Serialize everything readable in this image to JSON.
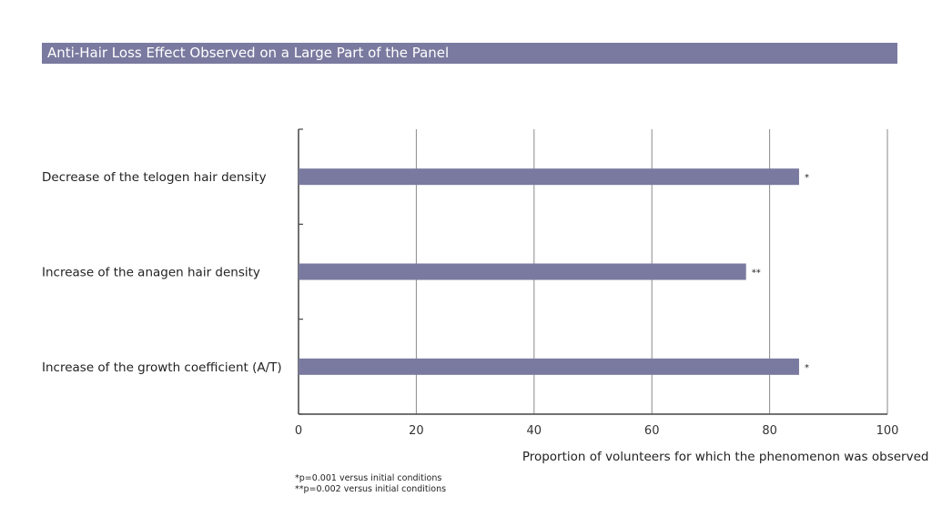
{
  "chart_data": {
    "type": "bar",
    "orientation": "horizontal",
    "title": "Anti-Hair Loss Effect Observed on a Large Part of the Panel",
    "categories": [
      "Decrease of the telogen hair density",
      "Increase of the anagen hair density",
      "Increase of the growth coefficient (A/T)"
    ],
    "values": [
      85,
      76,
      85
    ],
    "bar_annotations": [
      "*",
      "**",
      "*"
    ],
    "xlabel": "Proportion of volunteers for which the phenomenon was observed in %",
    "xlim": [
      0,
      100
    ],
    "xticks": [
      0,
      20,
      40,
      60,
      80,
      100
    ],
    "grid": "vertical",
    "bar_color": "#7a7aa0",
    "footnotes": [
      "*p=0.001 versus initial conditions",
      "**p=0.002 versus initial conditions"
    ]
  }
}
